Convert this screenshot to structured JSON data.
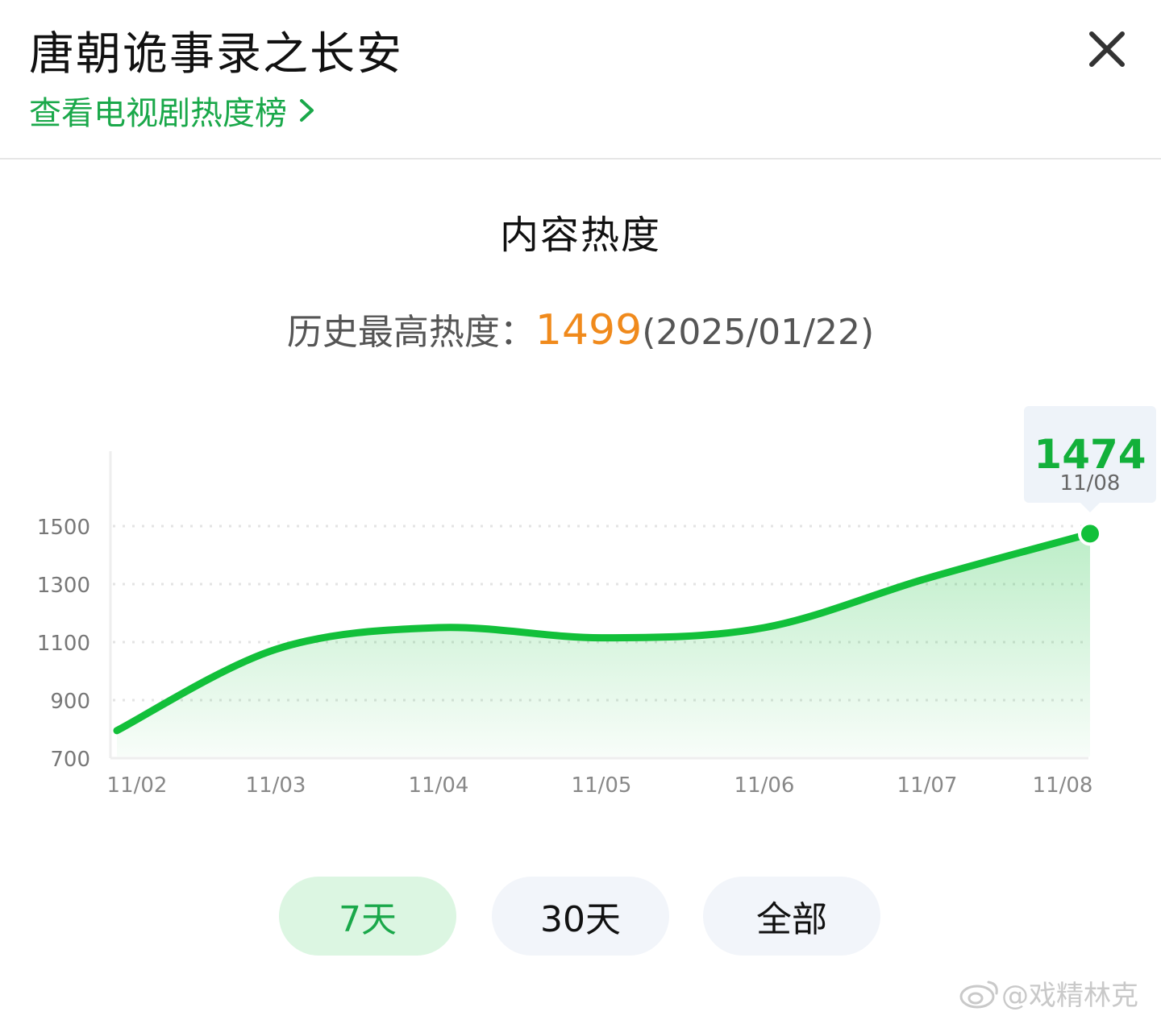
{
  "header": {
    "title": "唐朝诡事录之长安",
    "rank_link": "查看电视剧热度榜"
  },
  "section_title": "内容热度",
  "history": {
    "label": "历史最高热度：",
    "peak_value": "1499",
    "peak_date": "(2025/01/22)"
  },
  "chart_data": {
    "type": "area",
    "x": [
      "11/02",
      "11/03",
      "11/04",
      "11/05",
      "11/06",
      "11/07",
      "11/08"
    ],
    "y_ticks": [
      "1500",
      "1300",
      "1100",
      "900",
      "700"
    ],
    "ylim": [
      700,
      1500
    ],
    "series": [
      {
        "values": [
          795,
          1075,
          1150,
          1115,
          1150,
          1320,
          1474
        ]
      }
    ],
    "tooltip": {
      "value": "1474",
      "date": "11/08"
    },
    "grid": true,
    "line_color": "#12c03a"
  },
  "tabs": [
    {
      "label": "7天",
      "active": true
    },
    {
      "label": "30天",
      "active": false
    },
    {
      "label": "全部",
      "active": false
    }
  ],
  "watermark": "@戏精林克"
}
